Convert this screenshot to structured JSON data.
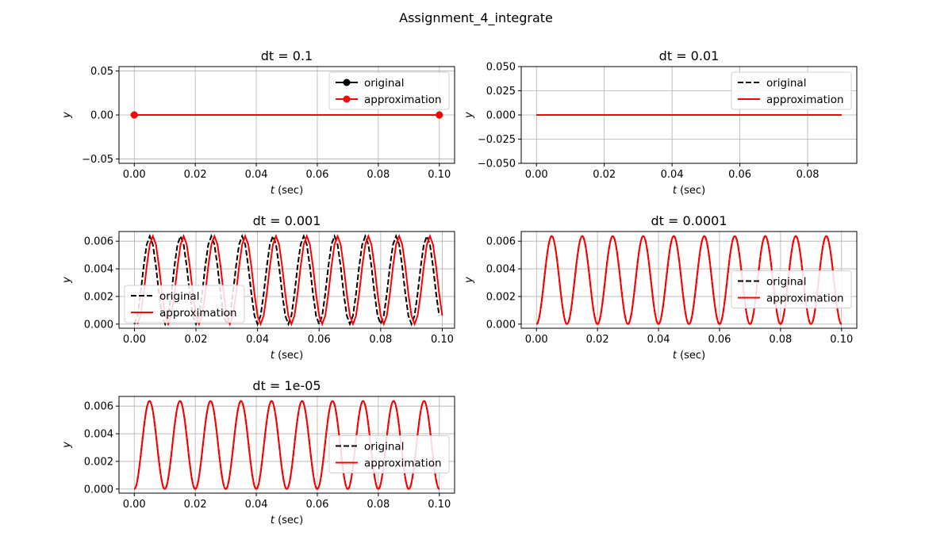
{
  "figure": {
    "title": "Assignment_4_integrate",
    "colors": {
      "original": "#000000",
      "approximation": "#ff0000",
      "grid": "#b0b0b0"
    }
  },
  "chart_data": [
    {
      "type": "line",
      "title": "dt = 0.1",
      "xlabel_var": "t",
      "xlabel_unit": " (sec)",
      "ylabel": "y",
      "xlim": [
        -0.005,
        0.105
      ],
      "ylim": [
        -0.055,
        0.055
      ],
      "xticks": [
        0.0,
        0.02,
        0.04,
        0.06,
        0.08,
        0.1
      ],
      "xtick_labels": [
        "0.00",
        "0.02",
        "0.04",
        "0.06",
        "0.08",
        "0.10"
      ],
      "yticks": [
        -0.05,
        0.0,
        0.05
      ],
      "ytick_labels": [
        "−0.05",
        "0.00",
        "0.05"
      ],
      "grid": true,
      "legend_position": "upper-right",
      "series": [
        {
          "name": "original",
          "color": "#000000",
          "style": "solid",
          "marker": "circle",
          "x": [
            0.0,
            0.1
          ],
          "y": [
            0.0,
            0.0
          ]
        },
        {
          "name": "approximation",
          "color": "#ff0000",
          "style": "solid",
          "marker": "circle",
          "x": [
            0.0,
            0.1
          ],
          "y": [
            0.0,
            0.0
          ]
        }
      ]
    },
    {
      "type": "line",
      "title": "dt = 0.01",
      "xlabel_var": "t",
      "xlabel_unit": " (sec)",
      "ylabel": "y",
      "xlim": [
        -0.0045,
        0.0945
      ],
      "ylim": [
        -0.05,
        0.05
      ],
      "xticks": [
        0.0,
        0.02,
        0.04,
        0.06,
        0.08
      ],
      "xtick_labels": [
        "0.00",
        "0.02",
        "0.04",
        "0.06",
        "0.08"
      ],
      "yticks": [
        -0.05,
        -0.025,
        0.0,
        0.025,
        0.05
      ],
      "ytick_labels": [
        "−0.050",
        "−0.025",
        "0.000",
        "0.025",
        "0.050"
      ],
      "grid": true,
      "legend_position": "upper-right",
      "series": [
        {
          "name": "original",
          "color": "#000000",
          "style": "dashed",
          "x": [
            0.0,
            0.09
          ],
          "y": [
            0.0,
            0.0
          ]
        },
        {
          "name": "approximation",
          "color": "#ff0000",
          "style": "solid",
          "x": [
            0.0,
            0.09
          ],
          "y": [
            0.0,
            0.0
          ]
        }
      ]
    },
    {
      "type": "line",
      "title": "dt = 0.001",
      "xlabel_var": "t",
      "xlabel_unit": " (sec)",
      "ylabel": "y",
      "xlim": [
        -0.005,
        0.104
      ],
      "ylim": [
        -0.0003,
        0.0067
      ],
      "xticks": [
        0.0,
        0.02,
        0.04,
        0.06,
        0.08,
        0.1
      ],
      "xtick_labels": [
        "0.00",
        "0.02",
        "0.04",
        "0.06",
        "0.08",
        "0.10"
      ],
      "yticks": [
        0.0,
        0.002,
        0.004,
        0.006
      ],
      "ytick_labels": [
        "0.000",
        "0.002",
        "0.004",
        "0.006"
      ],
      "grid": true,
      "legend_position": "lower-left",
      "series": [
        {
          "name": "original",
          "color": "#000000",
          "style": "dashed",
          "function": "(1-cos(2*pi*100*t))/(2*pi*50)",
          "t_start": 0.0,
          "t_end": 0.099,
          "step": 0.001
        },
        {
          "name": "approximation",
          "color": "#ff0000",
          "style": "solid",
          "function": "(1-cos(2*pi*100*t))/(2*pi*50)",
          "t_start": 0.001,
          "t_end": 0.1,
          "step": 0.001,
          "shift": 0.001
        }
      ]
    },
    {
      "type": "line",
      "title": "dt = 0.0001",
      "xlabel_var": "t",
      "xlabel_unit": " (sec)",
      "ylabel": "y",
      "xlim": [
        -0.005,
        0.105
      ],
      "ylim": [
        -0.0003,
        0.0067
      ],
      "xticks": [
        0.0,
        0.02,
        0.04,
        0.06,
        0.08,
        0.1
      ],
      "xtick_labels": [
        "0.00",
        "0.02",
        "0.04",
        "0.06",
        "0.08",
        "0.10"
      ],
      "yticks": [
        0.0,
        0.002,
        0.004,
        0.006
      ],
      "ytick_labels": [
        "0.000",
        "0.002",
        "0.004",
        "0.006"
      ],
      "grid": true,
      "legend_position": "center-right",
      "series": [
        {
          "name": "original",
          "color": "#000000",
          "style": "dashed",
          "function": "(1-cos(2*pi*100*t))/(2*pi*50)",
          "t_start": 0.0,
          "t_end": 0.1,
          "step": 0.0001
        },
        {
          "name": "approximation",
          "color": "#ff0000",
          "style": "solid",
          "function": "(1-cos(2*pi*100*t))/(2*pi*50)",
          "t_start": 0.0,
          "t_end": 0.1,
          "step": 0.0001
        }
      ]
    },
    {
      "type": "line",
      "title": "dt = 1e-05",
      "xlabel_var": "t",
      "xlabel_unit": " (sec)",
      "ylabel": "y",
      "xlim": [
        -0.005,
        0.105
      ],
      "ylim": [
        -0.0003,
        0.0067
      ],
      "xticks": [
        0.0,
        0.02,
        0.04,
        0.06,
        0.08,
        0.1
      ],
      "xtick_labels": [
        "0.00",
        "0.02",
        "0.04",
        "0.06",
        "0.08",
        "0.10"
      ],
      "yticks": [
        0.0,
        0.002,
        0.004,
        0.006
      ],
      "ytick_labels": [
        "0.000",
        "0.002",
        "0.004",
        "0.006"
      ],
      "grid": true,
      "legend_position": "center-right",
      "series": [
        {
          "name": "original",
          "color": "#000000",
          "style": "dashed",
          "function": "(1-cos(2*pi*100*t))/(2*pi*50)",
          "t_start": 0.0,
          "t_end": 0.1,
          "step": 1e-05
        },
        {
          "name": "approximation",
          "color": "#ff0000",
          "style": "solid",
          "function": "(1-cos(2*pi*100*t))/(2*pi*50)",
          "t_start": 0.0,
          "t_end": 0.1,
          "step": 1e-05
        }
      ]
    }
  ]
}
